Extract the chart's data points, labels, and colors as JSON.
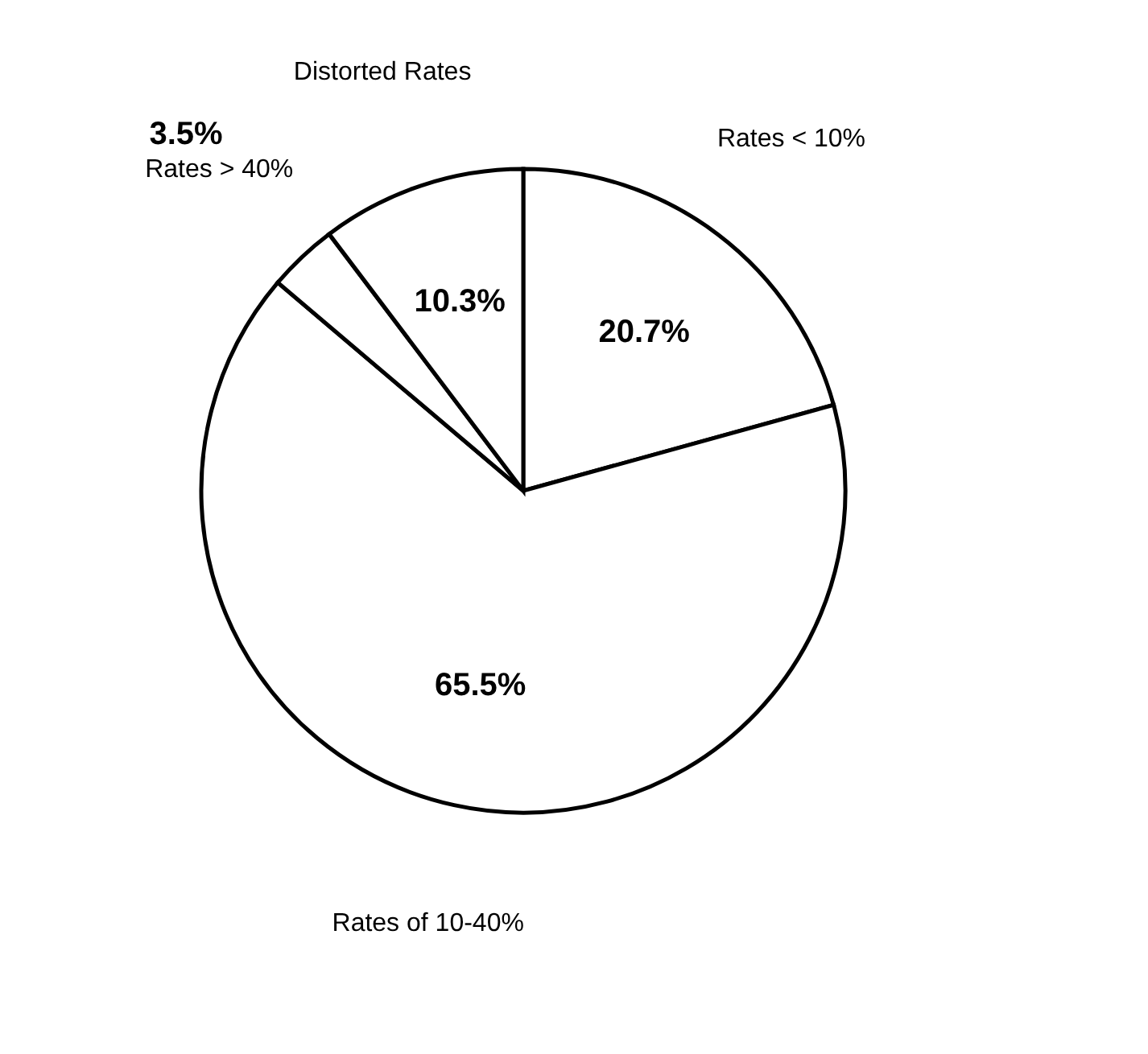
{
  "chart_data": {
    "type": "pie",
    "categories": [
      "Rates < 10%",
      "Rates of 10-40%",
      "Rates > 40%",
      "Distorted Rates"
    ],
    "values": [
      20.7,
      65.5,
      3.5,
      10.3
    ],
    "colors": [
      "#ffffff",
      "#ffffff",
      "#ffffff",
      "#ffffff"
    ],
    "value_labels": [
      "20.7%",
      "65.5%",
      "3.5%",
      "10.3%"
    ],
    "legend": false
  }
}
